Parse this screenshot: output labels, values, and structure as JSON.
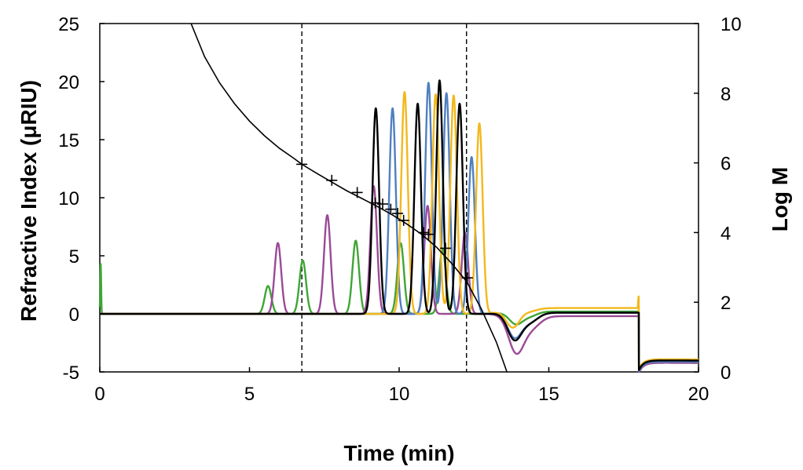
{
  "chart_data": {
    "type": "line",
    "xlabel": "Time (min)",
    "ylabel": "Refractive Index (μRIU)",
    "y2label": "Log M",
    "xlim": [
      0,
      20
    ],
    "ylim": [
      -5,
      25
    ],
    "y2lim": [
      0,
      10
    ],
    "x_ticks": [
      "0",
      "5",
      "10",
      "15",
      "20"
    ],
    "y_ticks": [
      "-5",
      "0",
      "5",
      "10",
      "15",
      "20",
      "25"
    ],
    "y2_ticks": [
      "0",
      "2",
      "4",
      "6",
      "8",
      "10"
    ],
    "grid": false,
    "legend": "none",
    "vertical_dashed_lines_x": [
      6.75,
      12.25
    ],
    "colors": {
      "green": "#3fa535",
      "purple": "#9b4a97",
      "blue": "#4f7fbf",
      "yellow": "#f2b81c",
      "black": "#000000",
      "calibration": "#000000"
    },
    "series": [
      {
        "color_key": "green",
        "baseline": {
          "start": 0,
          "post": 0,
          "post_time": 18.0,
          "post_level": -4.2
        },
        "peaks": [
          [
            5.62,
            2.4
          ],
          [
            6.78,
            4.6
          ],
          [
            8.55,
            6.3
          ],
          [
            10.05,
            6.1
          ],
          [
            11.45,
            5.6
          ]
        ],
        "spikes": [
          [
            0.03,
            4.3
          ]
        ],
        "negative_dip": [
          [
            13.9,
            -1.0,
            0.22
          ],
          [
            14.35,
            -0.4,
            0.25
          ]
        ],
        "offset_after": 0.2
      },
      {
        "color_key": "purple",
        "baseline": {
          "start": 0,
          "post": 0,
          "post_time": 18.0,
          "post_level": -4.2
        },
        "peaks": [
          [
            5.95,
            6.1
          ],
          [
            7.6,
            8.5
          ],
          [
            9.15,
            11.0
          ],
          [
            10.95,
            9.3
          ],
          [
            12.2,
            7.0
          ]
        ],
        "spikes": [],
        "negative_dip": [
          [
            13.9,
            -3.0,
            0.25
          ],
          [
            14.4,
            -1.0,
            0.3
          ]
        ],
        "offset_after": -0.2
      },
      {
        "color_key": "blue",
        "baseline": {
          "start": 0,
          "post": 0,
          "post_time": 18.0,
          "post_level": -4.1
        },
        "peaks": [
          [
            9.78,
            17.7
          ],
          [
            10.98,
            19.9
          ],
          [
            11.58,
            19.0
          ],
          [
            12.42,
            13.5
          ]
        ],
        "spikes": [],
        "negative_dip": [
          [
            13.85,
            -2.0,
            0.23
          ],
          [
            14.35,
            -0.8,
            0.28
          ]
        ],
        "offset_after": 0.1
      },
      {
        "color_key": "yellow",
        "baseline": {
          "start": 0,
          "post": 0,
          "post_time": 18.0,
          "post_level": -3.9
        },
        "peaks": [
          [
            10.18,
            19.1
          ],
          [
            11.22,
            18.9
          ],
          [
            11.82,
            18.8
          ],
          [
            12.68,
            16.4
          ]
        ],
        "spikes": [
          [
            18.0,
            1.0
          ]
        ],
        "negative_dip": [
          [
            13.8,
            -1.5,
            0.22
          ],
          [
            14.3,
            -0.3,
            0.28
          ]
        ],
        "offset_after": 0.5
      },
      {
        "color_key": "black",
        "baseline": {
          "start": 0,
          "post": 0,
          "post_time": 18.0,
          "post_level": -4.0
        },
        "peaks": [
          [
            9.22,
            17.7
          ],
          [
            10.62,
            18.1
          ],
          [
            11.35,
            20.1
          ],
          [
            12.02,
            18.1
          ]
        ],
        "spikes": [],
        "negative_dip": [
          [
            13.85,
            -2.2,
            0.23
          ],
          [
            14.35,
            -0.8,
            0.28
          ]
        ],
        "offset_after": 0.1
      }
    ],
    "calibration_curve": {
      "color_key": "calibration",
      "axis": "y2",
      "x": [
        3.05,
        3.5,
        4.0,
        4.5,
        5.0,
        5.5,
        6.0,
        6.5,
        6.75,
        7.25,
        7.75,
        8.25,
        8.75,
        9.25,
        9.75,
        10.25,
        10.75,
        11.25,
        11.75,
        12.25,
        12.75,
        13.25,
        13.6
      ],
      "log_m": [
        10.0,
        9.05,
        8.3,
        7.7,
        7.2,
        6.78,
        6.42,
        6.12,
        5.96,
        5.7,
        5.45,
        5.2,
        4.98,
        4.76,
        4.52,
        4.25,
        3.95,
        3.58,
        3.12,
        2.6,
        1.8,
        0.85,
        0.0
      ]
    },
    "calibration_markers": {
      "axis": "y2",
      "x": [
        6.75,
        7.75,
        8.6,
        9.2,
        9.45,
        9.72,
        9.95,
        10.15,
        10.82,
        10.98,
        11.55,
        12.28
      ],
      "log_m": [
        5.96,
        5.5,
        5.15,
        4.85,
        4.82,
        4.67,
        4.55,
        4.35,
        4.0,
        3.95,
        3.55,
        2.7
      ]
    }
  }
}
